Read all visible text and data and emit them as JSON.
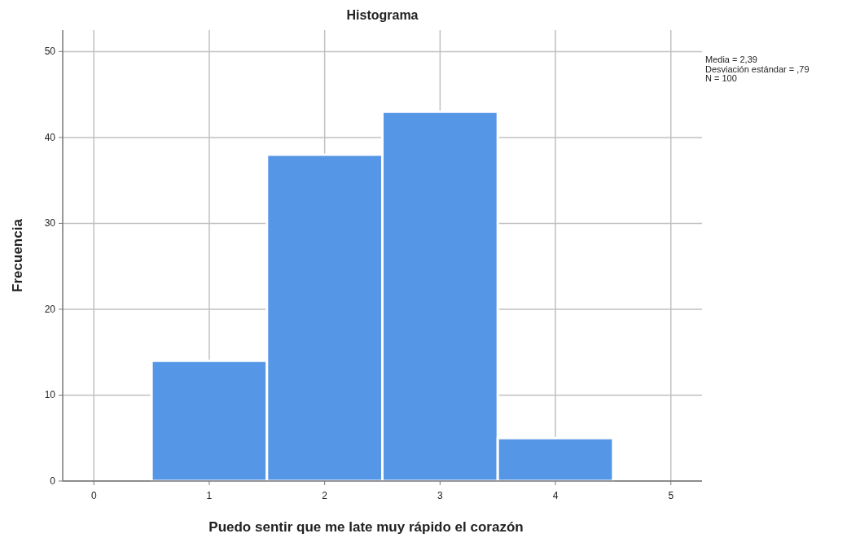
{
  "chart_data": {
    "type": "histogram",
    "title": "Histograma",
    "xlabel": "Puedo sentir que me late muy rápido el corazón",
    "ylabel": "Frecuencia",
    "bins": [
      0.5,
      1.5,
      2.5,
      3.5,
      4.5
    ],
    "values": [
      14,
      38,
      43,
      5
    ],
    "color": "#5596e6",
    "xlim": [
      -0.27,
      5.27
    ],
    "xticks": [
      0,
      1,
      2,
      3,
      4,
      5
    ],
    "ylim": [
      0,
      52.5
    ],
    "yticks": [
      0,
      10,
      20,
      30,
      40,
      50
    ],
    "grid": true,
    "annotations": [
      "Media = 2,39",
      "Desviación estándar = ,79",
      "N = 100"
    ]
  }
}
